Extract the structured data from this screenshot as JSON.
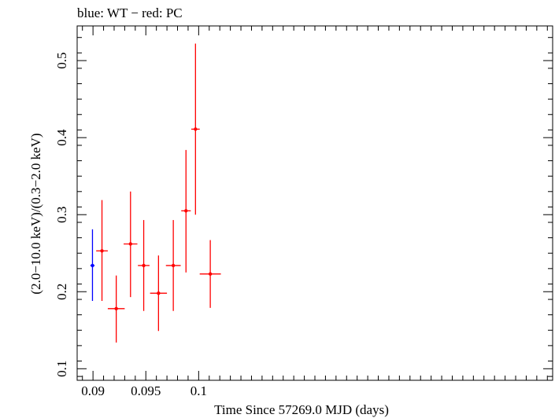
{
  "chart_data": {
    "type": "scatter",
    "title": "blue: WT − red: PC",
    "xlabel": "Time Since 57269.0 MJD (days)",
    "ylabel": "(2.0−10.0 keV)/(0.3−2.0 keV)",
    "xlim": [
      0.0885,
      0.1335
    ],
    "ylim": [
      0.085,
      0.545
    ],
    "xticks": [
      0.09,
      0.095,
      0.1
    ],
    "xtick_labels": [
      "0.09",
      "0.095",
      "0.1"
    ],
    "yticks": [
      0.1,
      0.2,
      0.3,
      0.4,
      0.5
    ],
    "ytick_labels": [
      "0.1",
      "0.2",
      "0.3",
      "0.4",
      "0.5"
    ],
    "grid": false,
    "series": [
      {
        "name": "WT",
        "color": "#0000ff",
        "points": [
          {
            "x": 0.08995,
            "y": 0.234,
            "xerr": 0.0002,
            "yerr_low": 0.046,
            "yerr_high": 0.047
          }
        ]
      },
      {
        "name": "PC",
        "color": "#ff0000",
        "points": [
          {
            "x": 0.09085,
            "y": 0.253,
            "xerr": 0.00055,
            "yerr_low": 0.065,
            "yerr_high": 0.066
          },
          {
            "x": 0.0922,
            "y": 0.178,
            "xerr": 0.0008,
            "yerr_low": 0.044,
            "yerr_high": 0.043
          },
          {
            "x": 0.09355,
            "y": 0.262,
            "xerr": 0.00065,
            "yerr_low": 0.069,
            "yerr_high": 0.068
          },
          {
            "x": 0.0948,
            "y": 0.234,
            "xerr": 0.00055,
            "yerr_low": 0.059,
            "yerr_high": 0.059
          },
          {
            "x": 0.0962,
            "y": 0.198,
            "xerr": 0.0008,
            "yerr_low": 0.049,
            "yerr_high": 0.049
          },
          {
            "x": 0.0976,
            "y": 0.234,
            "xerr": 0.0007,
            "yerr_low": 0.059,
            "yerr_high": 0.059
          },
          {
            "x": 0.0988,
            "y": 0.305,
            "xerr": 0.00045,
            "yerr_low": 0.08,
            "yerr_high": 0.079
          },
          {
            "x": 0.0997,
            "y": 0.411,
            "xerr": 0.0004,
            "yerr_low": 0.111,
            "yerr_high": 0.111
          },
          {
            "x": 0.1011,
            "y": 0.223,
            "xerr": 0.001,
            "yerr_low": 0.044,
            "yerr_high": 0.044
          }
        ]
      }
    ]
  }
}
